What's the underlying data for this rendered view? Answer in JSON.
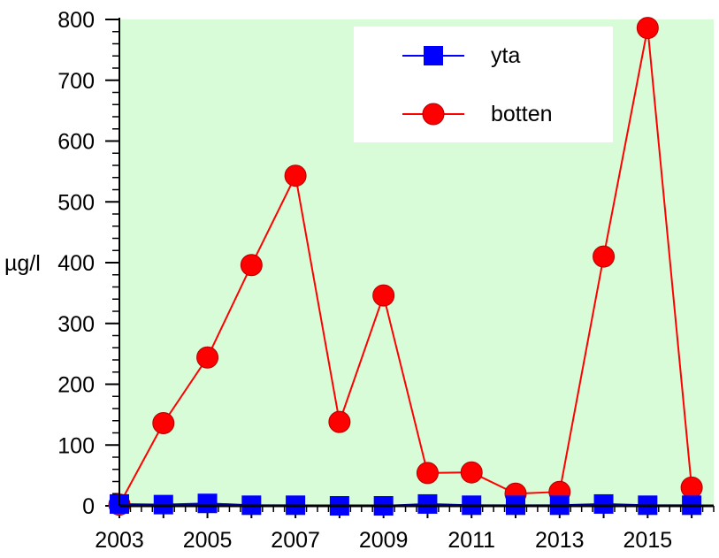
{
  "chart_data": {
    "type": "line",
    "title": "",
    "xlabel": "",
    "ylabel": "µg/l",
    "xlim": [
      2003,
      2016.5
    ],
    "ylim": [
      0,
      800
    ],
    "xticks": [
      2003,
      2005,
      2007,
      2009,
      2011,
      2013,
      2015
    ],
    "xtick_labels": [
      "2003",
      "2005",
      "2007",
      "2009",
      "2011",
      "2013",
      "2015"
    ],
    "yticks": [
      0,
      100,
      200,
      300,
      400,
      500,
      600,
      700,
      800
    ],
    "ytick_labels": [
      "0",
      "100",
      "200",
      "300",
      "400",
      "500",
      "600",
      "700",
      "800"
    ],
    "x": [
      2003,
      2004,
      2005,
      2006,
      2007,
      2008,
      2009,
      2010,
      2011,
      2012,
      2013,
      2014,
      2015,
      2016
    ],
    "grid": false,
    "legend_position": "top-right",
    "plot_background": "#d8fcd8",
    "series": [
      {
        "name": "yta",
        "color": "#0000ff",
        "marker": "square",
        "values": [
          3,
          2,
          4,
          1,
          1,
          0,
          0,
          3,
          1,
          1,
          1,
          3,
          1,
          1
        ]
      },
      {
        "name": "botten",
        "color": "#ff0000",
        "marker": "circle",
        "values": [
          2,
          136,
          244,
          396,
          543,
          138,
          346,
          54,
          55,
          20,
          23,
          410,
          786,
          30
        ]
      }
    ]
  }
}
